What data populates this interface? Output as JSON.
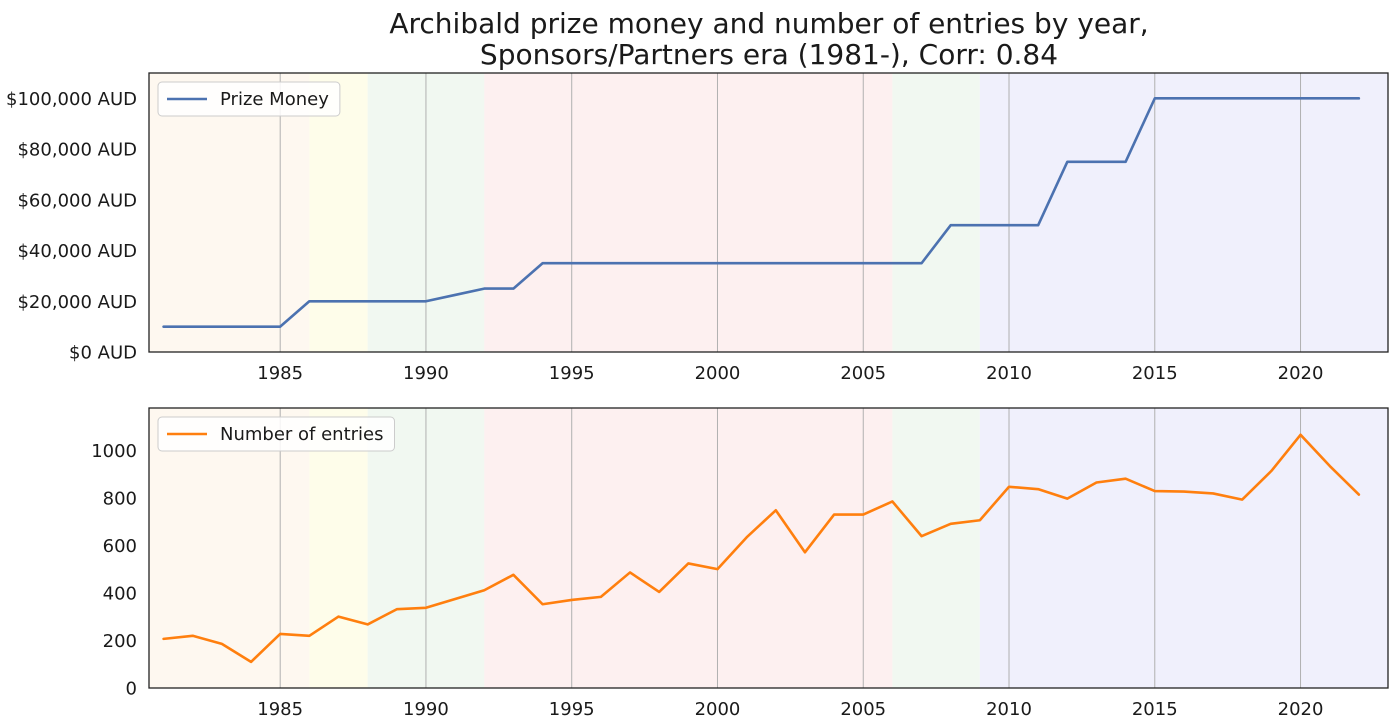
{
  "chart_data": [
    {
      "type": "line",
      "title_lines": [
        "Archibald prize money and number of entries by year,",
        "Sponsors/Partners era (1981-), Corr: 0.84"
      ],
      "xlim": [
        1980.5,
        2023
      ],
      "ylim": [
        0,
        110000
      ],
      "x_ticks": [
        1985,
        1990,
        1995,
        2000,
        2005,
        2010,
        2015,
        2020
      ],
      "y_ticks": [
        0,
        20000,
        40000,
        60000,
        80000,
        100000
      ],
      "y_tick_labels": [
        "$0 AUD",
        "$20,000 AUD",
        "$40,000 AUD",
        "$60,000 AUD",
        "$80,000 AUD",
        "$100,000 AUD"
      ],
      "grid": "vertical lines at x ticks",
      "legend_position": "upper-left",
      "era_bands": [
        {
          "start": 1980.5,
          "end": 1986,
          "color": "#fdf3e3"
        },
        {
          "start": 1986,
          "end": 1988,
          "color": "#fefbd8"
        },
        {
          "start": 1988,
          "end": 1992,
          "color": "#e6f3e6"
        },
        {
          "start": 1992,
          "end": 2006,
          "color": "#fbe4e4"
        },
        {
          "start": 2006,
          "end": 2009,
          "color": "#e6f3e6"
        },
        {
          "start": 2009,
          "end": 2023,
          "color": "#e3e3fa"
        }
      ],
      "series": [
        {
          "name": "Prize Money",
          "color": "#4c72b0",
          "x": [
            1981,
            1982,
            1983,
            1984,
            1985,
            1986,
            1987,
            1988,
            1989,
            1990,
            1991,
            1992,
            1993,
            1994,
            1995,
            1996,
            1997,
            1998,
            1999,
            2000,
            2001,
            2002,
            2003,
            2004,
            2005,
            2006,
            2007,
            2008,
            2009,
            2010,
            2011,
            2012,
            2013,
            2014,
            2015,
            2016,
            2017,
            2018,
            2019,
            2020,
            2021,
            2022
          ],
          "values": [
            10000,
            10000,
            10000,
            10000,
            10000,
            20000,
            20000,
            20000,
            20000,
            20000,
            22500,
            25000,
            25000,
            35000,
            35000,
            35000,
            35000,
            35000,
            35000,
            35000,
            35000,
            35000,
            35000,
            35000,
            35000,
            35000,
            35000,
            50000,
            50000,
            50000,
            50000,
            75000,
            75000,
            75000,
            100000,
            100000,
            100000,
            100000,
            100000,
            100000,
            100000,
            100000
          ]
        }
      ]
    },
    {
      "type": "line",
      "xlim": [
        1980.5,
        2023
      ],
      "ylim": [
        0,
        1180
      ],
      "x_ticks": [
        1985,
        1990,
        1995,
        2000,
        2005,
        2010,
        2015,
        2020
      ],
      "y_ticks": [
        0,
        200,
        400,
        600,
        800,
        1000
      ],
      "y_tick_labels": [
        "0",
        "200",
        "400",
        "600",
        "800",
        "1000"
      ],
      "grid": "vertical lines at x ticks",
      "legend_position": "upper-left",
      "era_bands": [
        {
          "start": 1980.5,
          "end": 1986,
          "color": "#fdf3e3"
        },
        {
          "start": 1986,
          "end": 1988,
          "color": "#fefbd8"
        },
        {
          "start": 1988,
          "end": 1992,
          "color": "#e6f3e6"
        },
        {
          "start": 1992,
          "end": 2006,
          "color": "#fbe4e4"
        },
        {
          "start": 2006,
          "end": 2009,
          "color": "#e6f3e6"
        },
        {
          "start": 2009,
          "end": 2023,
          "color": "#e3e3fa"
        }
      ],
      "series": [
        {
          "name": "Number of entries",
          "color": "#ff7f0e",
          "x": [
            1981,
            1982,
            1983,
            1984,
            1985,
            1986,
            1987,
            1988,
            1989,
            1990,
            1991,
            1992,
            1993,
            1994,
            1995,
            1996,
            1997,
            1998,
            1999,
            2000,
            2001,
            2002,
            2003,
            2004,
            2005,
            2006,
            2007,
            2008,
            2009,
            2010,
            2011,
            2012,
            2013,
            2014,
            2015,
            2016,
            2017,
            2018,
            2019,
            2020,
            2021,
            2022
          ],
          "values": [
            207,
            220,
            186,
            110,
            228,
            220,
            301,
            268,
            332,
            338,
            375,
            412,
            477,
            353,
            371,
            384,
            487,
            405,
            525,
            501,
            635,
            749,
            572,
            731,
            731,
            786,
            640,
            692,
            707,
            848,
            838,
            798,
            866,
            882,
            830,
            828,
            820,
            794,
            915,
            1067,
            936,
            815
          ]
        }
      ]
    }
  ]
}
